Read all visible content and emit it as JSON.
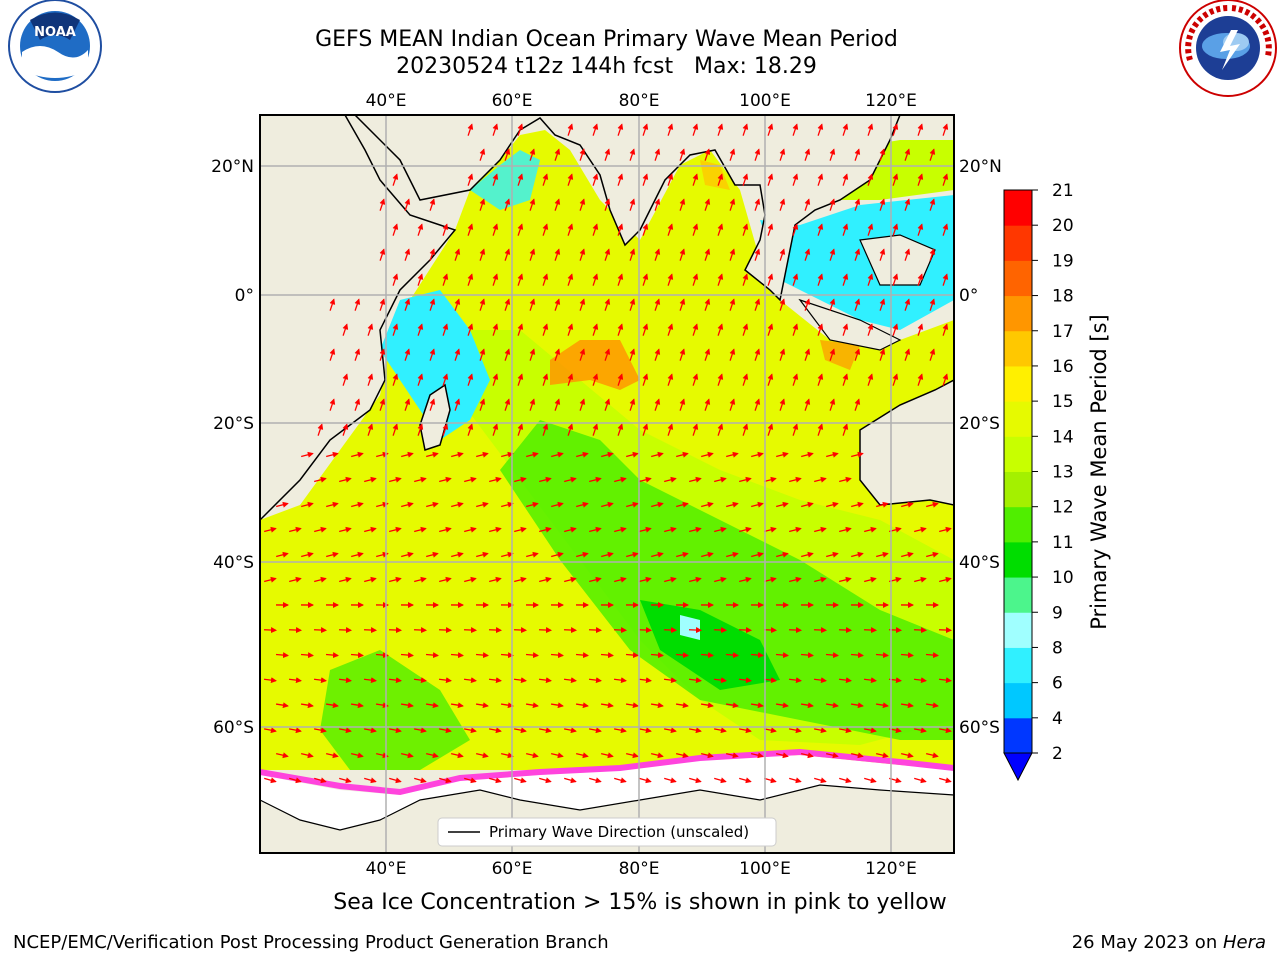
{
  "title": {
    "line1": "GEFS MEAN Indian Ocean Primary Wave Mean Period",
    "line2": "20230524 t12z 144h fcst   Max: 18.29"
  },
  "logos": {
    "left": {
      "name": "noaa-logo",
      "text": "NOAA",
      "ring_text": "NATIONAL OCEANIC AND ATMOSPHERIC ADMINISTRATION · U.S. DEPARTMENT OF COMMERCE"
    },
    "right": {
      "name": "nws-logo",
      "ring_text": "NATIONAL WEATHER SERVICE"
    }
  },
  "map": {
    "lon_labels": [
      "40°E",
      "60°E",
      "80°E",
      "100°E",
      "120°E"
    ],
    "lat_labels": [
      "20°N",
      "0°",
      "20°S",
      "40°S",
      "60°S"
    ],
    "legend_label": "Primary Wave Direction (unscaled)",
    "colors": {
      "land": "#efedde",
      "ice": "#ffffff",
      "grid": "#b0b0b0",
      "arrow": "#ff0000"
    }
  },
  "colorbar": {
    "label": "Primary Wave Mean Period [s]",
    "ticks": [
      "2",
      "4",
      "6",
      "8",
      "9",
      "10",
      "11",
      "12",
      "13",
      "14",
      "15",
      "16",
      "17",
      "18",
      "19",
      "20",
      "21"
    ],
    "colors": [
      "#0037ff",
      "#00c8ff",
      "#30f0ff",
      "#a0ffff",
      "#4cf58c",
      "#00dd00",
      "#50ee00",
      "#a4f000",
      "#c8ff00",
      "#e6fa00",
      "#fff000",
      "#ffc800",
      "#ff9600",
      "#ff6400",
      "#ff3700",
      "#ff0000"
    ],
    "extend_color": "#0000ff"
  },
  "caption": "Sea Ice Concentration > 15% is shown in pink to yellow",
  "footer": {
    "credit": "NCEP/EMC/Verification Post Processing Product Generation Branch",
    "date": "26 May 2023 on ",
    "machine": "Hera"
  }
}
